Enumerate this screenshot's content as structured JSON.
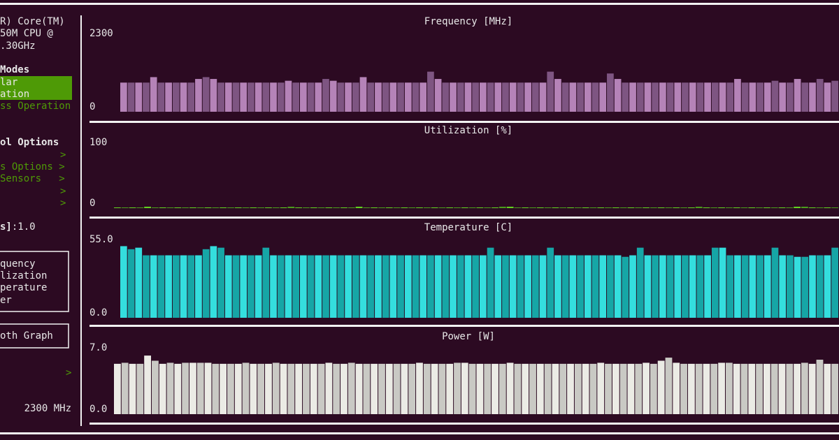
{
  "sidebar": {
    "cpu": [
      "R) Core(TM)",
      "50M CPU @",
      ".30GHz"
    ],
    "modes_heading": "Modes",
    "modes": [
      "lar",
      "ation",
      "ss Operation"
    ],
    "control_heading": "ol Options",
    "control_items": [
      ">",
      "s Options >",
      "Sensors   >",
      ">",
      ">"
    ],
    "refresh_label": "s]",
    "refresh_value": ":1.0",
    "graphs_box": [
      "quency",
      "lization",
      "perature",
      "er"
    ],
    "smooth_box": "oth Graph",
    "arrow": ">",
    "frequency": "2300 MHz"
  },
  "chart_data": [
    {
      "type": "bar",
      "title": "Frequency [MHz]",
      "ylim": [
        0,
        2300
      ],
      "yticks": [
        0,
        2300
      ],
      "colors": [
        "#b583b8",
        "#7e5582"
      ],
      "values": [
        800,
        800,
        800,
        800,
        950,
        800,
        800,
        800,
        800,
        800,
        900,
        950,
        900,
        800,
        800,
        800,
        800,
        800,
        800,
        800,
        800,
        800,
        850,
        800,
        800,
        800,
        800,
        900,
        850,
        800,
        800,
        800,
        950,
        800,
        800,
        800,
        800,
        800,
        800,
        800,
        800,
        1100,
        900,
        800,
        800,
        800,
        800,
        800,
        800,
        800,
        800,
        800,
        800,
        800,
        800,
        800,
        800,
        1100,
        900,
        800,
        800,
        800,
        800,
        800,
        800,
        1050,
        900,
        800,
        800,
        800,
        800,
        800,
        800,
        800,
        800,
        800,
        800,
        800,
        800,
        800,
        800,
        800,
        900,
        800,
        800,
        800,
        800,
        850,
        800,
        800,
        900,
        800,
        800,
        900,
        800,
        850
      ]
    },
    {
      "type": "bar",
      "title": "Utilization [%]",
      "ylim": [
        0,
        100
      ],
      "yticks": [
        0,
        100
      ],
      "colors": [
        "#62d320",
        "#4a9c1c"
      ],
      "values": [
        1,
        1,
        1,
        1,
        2,
        1,
        1,
        1,
        1,
        1,
        1,
        1,
        1,
        1,
        1,
        1,
        1,
        1,
        1,
        1,
        1,
        1,
        1,
        2,
        1,
        1,
        1,
        1,
        1,
        1,
        1,
        1,
        2,
        1,
        1,
        1,
        1,
        1,
        1,
        1,
        1,
        1,
        1,
        1,
        1,
        1,
        1,
        1,
        1,
        1,
        1,
        2,
        2,
        1,
        1,
        1,
        1,
        1,
        1,
        1,
        1,
        1,
        1,
        1,
        1,
        1,
        1,
        1,
        1,
        1,
        1,
        1,
        1,
        1,
        1,
        1,
        1,
        2,
        1,
        1,
        1,
        1,
        1,
        1,
        1,
        1,
        1,
        1,
        1,
        1,
        2,
        2,
        1,
        1,
        1,
        1
      ]
    },
    {
      "type": "bar",
      "title": "Temperature [C]",
      "ylim": [
        0,
        55
      ],
      "yticks": [
        {
          "value": 0,
          "label": "0.0"
        },
        {
          "value": 55,
          "label": "55.0"
        }
      ],
      "colors": [
        "#34dede",
        "#16a6a6"
      ],
      "values": [
        47,
        45,
        46,
        41,
        41,
        41,
        41,
        41,
        41,
        41,
        41,
        45,
        47,
        46,
        41,
        41,
        41,
        41,
        41,
        46,
        41,
        41,
        41,
        41,
        41,
        41,
        41,
        41,
        41,
        41,
        41,
        41,
        41,
        41,
        41,
        41,
        41,
        41,
        41,
        41,
        41,
        41,
        41,
        41,
        41,
        41,
        41,
        41,
        41,
        46,
        41,
        41,
        41,
        41,
        41,
        41,
        41,
        46,
        41,
        41,
        41,
        41,
        41,
        41,
        41,
        41,
        41,
        40,
        41,
        46,
        41,
        41,
        41,
        41,
        41,
        41,
        41,
        41,
        41,
        46,
        46,
        41,
        41,
        41,
        41,
        41,
        41,
        46,
        41,
        41,
        40,
        40,
        41,
        41,
        41,
        46
      ]
    },
    {
      "type": "bar",
      "title": "Power [W]",
      "ylim": [
        0,
        7
      ],
      "yticks": [
        {
          "value": 0,
          "label": "0.0"
        },
        {
          "value": 7,
          "label": "7.0"
        }
      ],
      "colors": [
        "#ebebe5",
        "#c9c9c4"
      ],
      "values": [
        4.9,
        5.0,
        4.9,
        4.9,
        5.7,
        5.2,
        4.9,
        5.0,
        4.9,
        5.0,
        5.0,
        5.0,
        5.0,
        4.9,
        4.9,
        4.9,
        4.9,
        5.0,
        4.9,
        4.9,
        4.9,
        5.0,
        4.9,
        4.9,
        4.9,
        4.9,
        4.9,
        4.9,
        5.0,
        4.9,
        4.9,
        5.0,
        4.9,
        4.9,
        4.9,
        4.9,
        4.9,
        4.9,
        4.9,
        4.9,
        5.0,
        4.9,
        4.9,
        4.9,
        4.9,
        5.0,
        5.0,
        4.9,
        4.9,
        4.9,
        4.9,
        4.9,
        5.0,
        4.9,
        4.9,
        4.9,
        4.9,
        4.9,
        4.9,
        4.9,
        4.9,
        4.9,
        4.9,
        4.9,
        5.0,
        4.9,
        4.9,
        4.9,
        4.9,
        4.9,
        5.0,
        4.9,
        5.2,
        5.5,
        5.0,
        4.9,
        4.9,
        4.9,
        4.9,
        4.9,
        5.0,
        5.0,
        4.9,
        4.9,
        4.9,
        4.9,
        4.9,
        4.9,
        4.9,
        4.9,
        4.9,
        5.0,
        4.9,
        5.3,
        4.9,
        4.9
      ]
    }
  ]
}
